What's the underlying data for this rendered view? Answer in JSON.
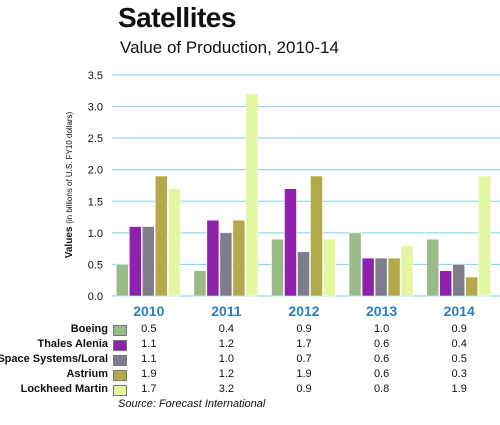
{
  "title": "Satellites",
  "subtitle": "Value of Production, 2010-14",
  "source": "Source:  Forecast International",
  "chart_data": {
    "type": "bar",
    "title": "Satellites",
    "subtitle": "Value of Production, 2010-14",
    "xlabel": "",
    "ylabel": "Values (in billions of U.S. FY10 dollars)",
    "ylim": [
      0,
      3.5
    ],
    "yticks": [
      "0.0",
      "0.5",
      "1.0",
      "1.5",
      "2.0",
      "2.5",
      "3.0",
      "3.5"
    ],
    "grid": true,
    "categories": [
      "2010",
      "2011",
      "2012",
      "2013",
      "2014"
    ],
    "series": [
      {
        "name": "Boeing",
        "color": "#99bb88",
        "values": [
          0.5,
          0.4,
          0.9,
          1.0,
          0.9
        ],
        "labels": [
          "0.5",
          "0.4",
          "0.9",
          "1.0",
          "0.9"
        ]
      },
      {
        "name": "Thales Alenia",
        "color": "#8e22ad",
        "values": [
          1.1,
          1.2,
          1.7,
          0.6,
          0.4
        ],
        "labels": [
          "1.1",
          "1.2",
          "1.7",
          "0.6",
          "0.4"
        ]
      },
      {
        "name": "Space Systems/Loral",
        "color": "#807c8e",
        "values": [
          1.1,
          1.0,
          0.7,
          0.6,
          0.5
        ],
        "labels": [
          "1.1",
          "1.0",
          "0.7",
          "0.6",
          "0.5"
        ]
      },
      {
        "name": "Astrium",
        "color": "#b3a84a",
        "values": [
          1.9,
          1.2,
          1.9,
          0.6,
          0.3
        ],
        "labels": [
          "1.9",
          "1.2",
          "1.9",
          "0.6",
          "0.3"
        ]
      },
      {
        "name": "Lockheed Martin",
        "color": "#e3f7a3",
        "values": [
          1.7,
          3.2,
          0.9,
          0.8,
          1.9
        ],
        "labels": [
          "1.7",
          "3.2",
          "0.9",
          "0.8",
          "1.9"
        ]
      }
    ],
    "legend": "table-below",
    "colors": {
      "grid": "#7fd0ee",
      "category_label": "#2a7fc4"
    }
  }
}
